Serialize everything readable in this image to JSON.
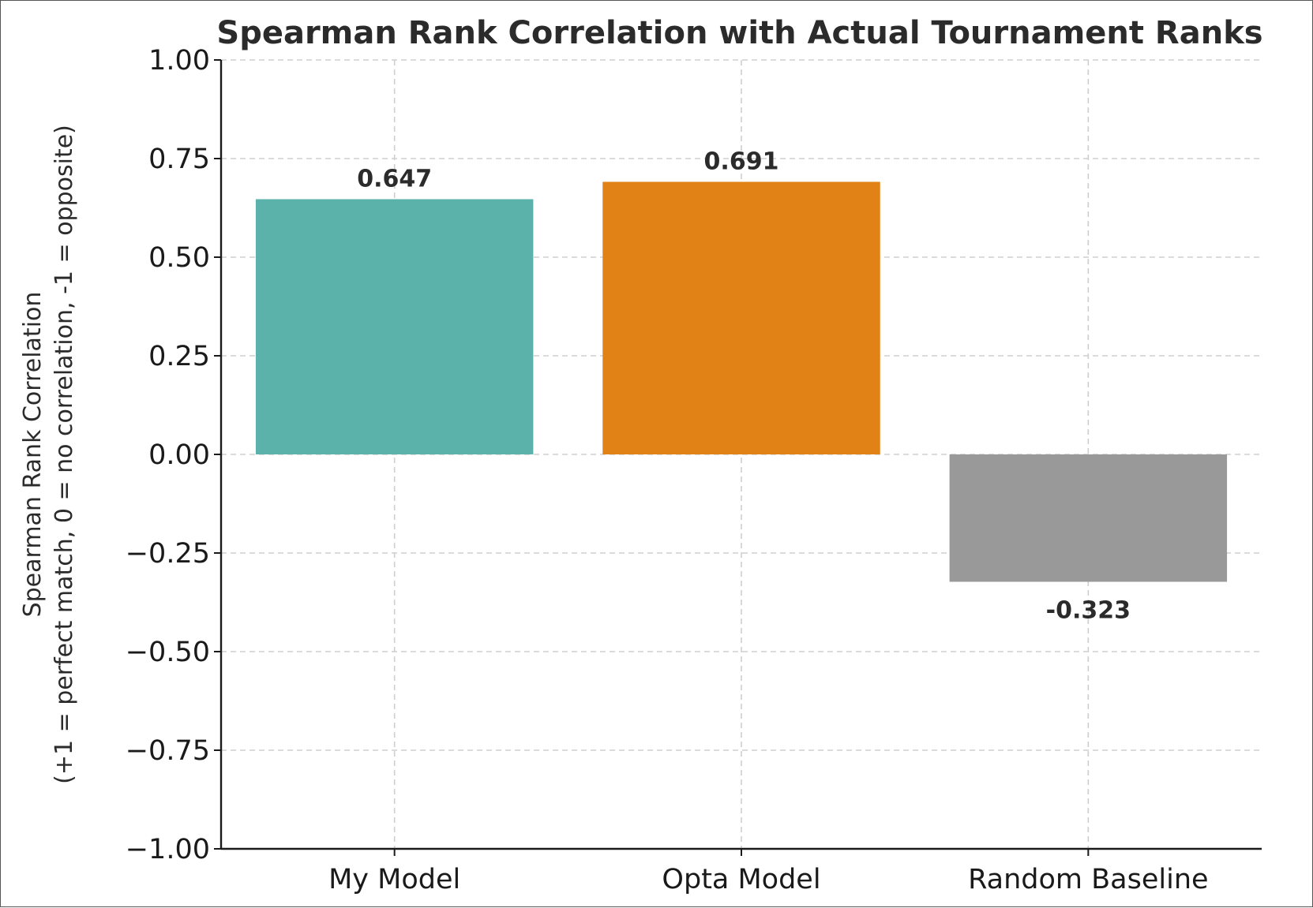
{
  "chart_data": {
    "type": "bar",
    "title": "Spearman Rank Correlation with Actual Tournament Ranks",
    "ylabel_lines": [
      "Spearman Rank Correlation",
      "(+1 = perfect match, 0 = no correlation, -1 = opposite)"
    ],
    "xlabel": "",
    "categories": [
      "My Model",
      "Opta Model",
      "Random Baseline"
    ],
    "values": [
      0.647,
      0.691,
      -0.323
    ],
    "value_labels": [
      "0.647",
      "0.691",
      "-0.323"
    ],
    "colors": [
      "#5ab2aa",
      "#e08216",
      "#999999"
    ],
    "ylim": [
      -1.0,
      1.0
    ],
    "yticks": [
      1.0,
      0.75,
      0.5,
      0.25,
      0.0,
      -0.25,
      -0.5,
      -0.75,
      -1.0
    ],
    "ytick_labels": [
      "1.00",
      "0.75",
      "0.50",
      "0.25",
      "0.00",
      "−0.25",
      "−0.50",
      "−0.75",
      "−1.00"
    ],
    "grid": true,
    "grid_style": "dashed"
  }
}
